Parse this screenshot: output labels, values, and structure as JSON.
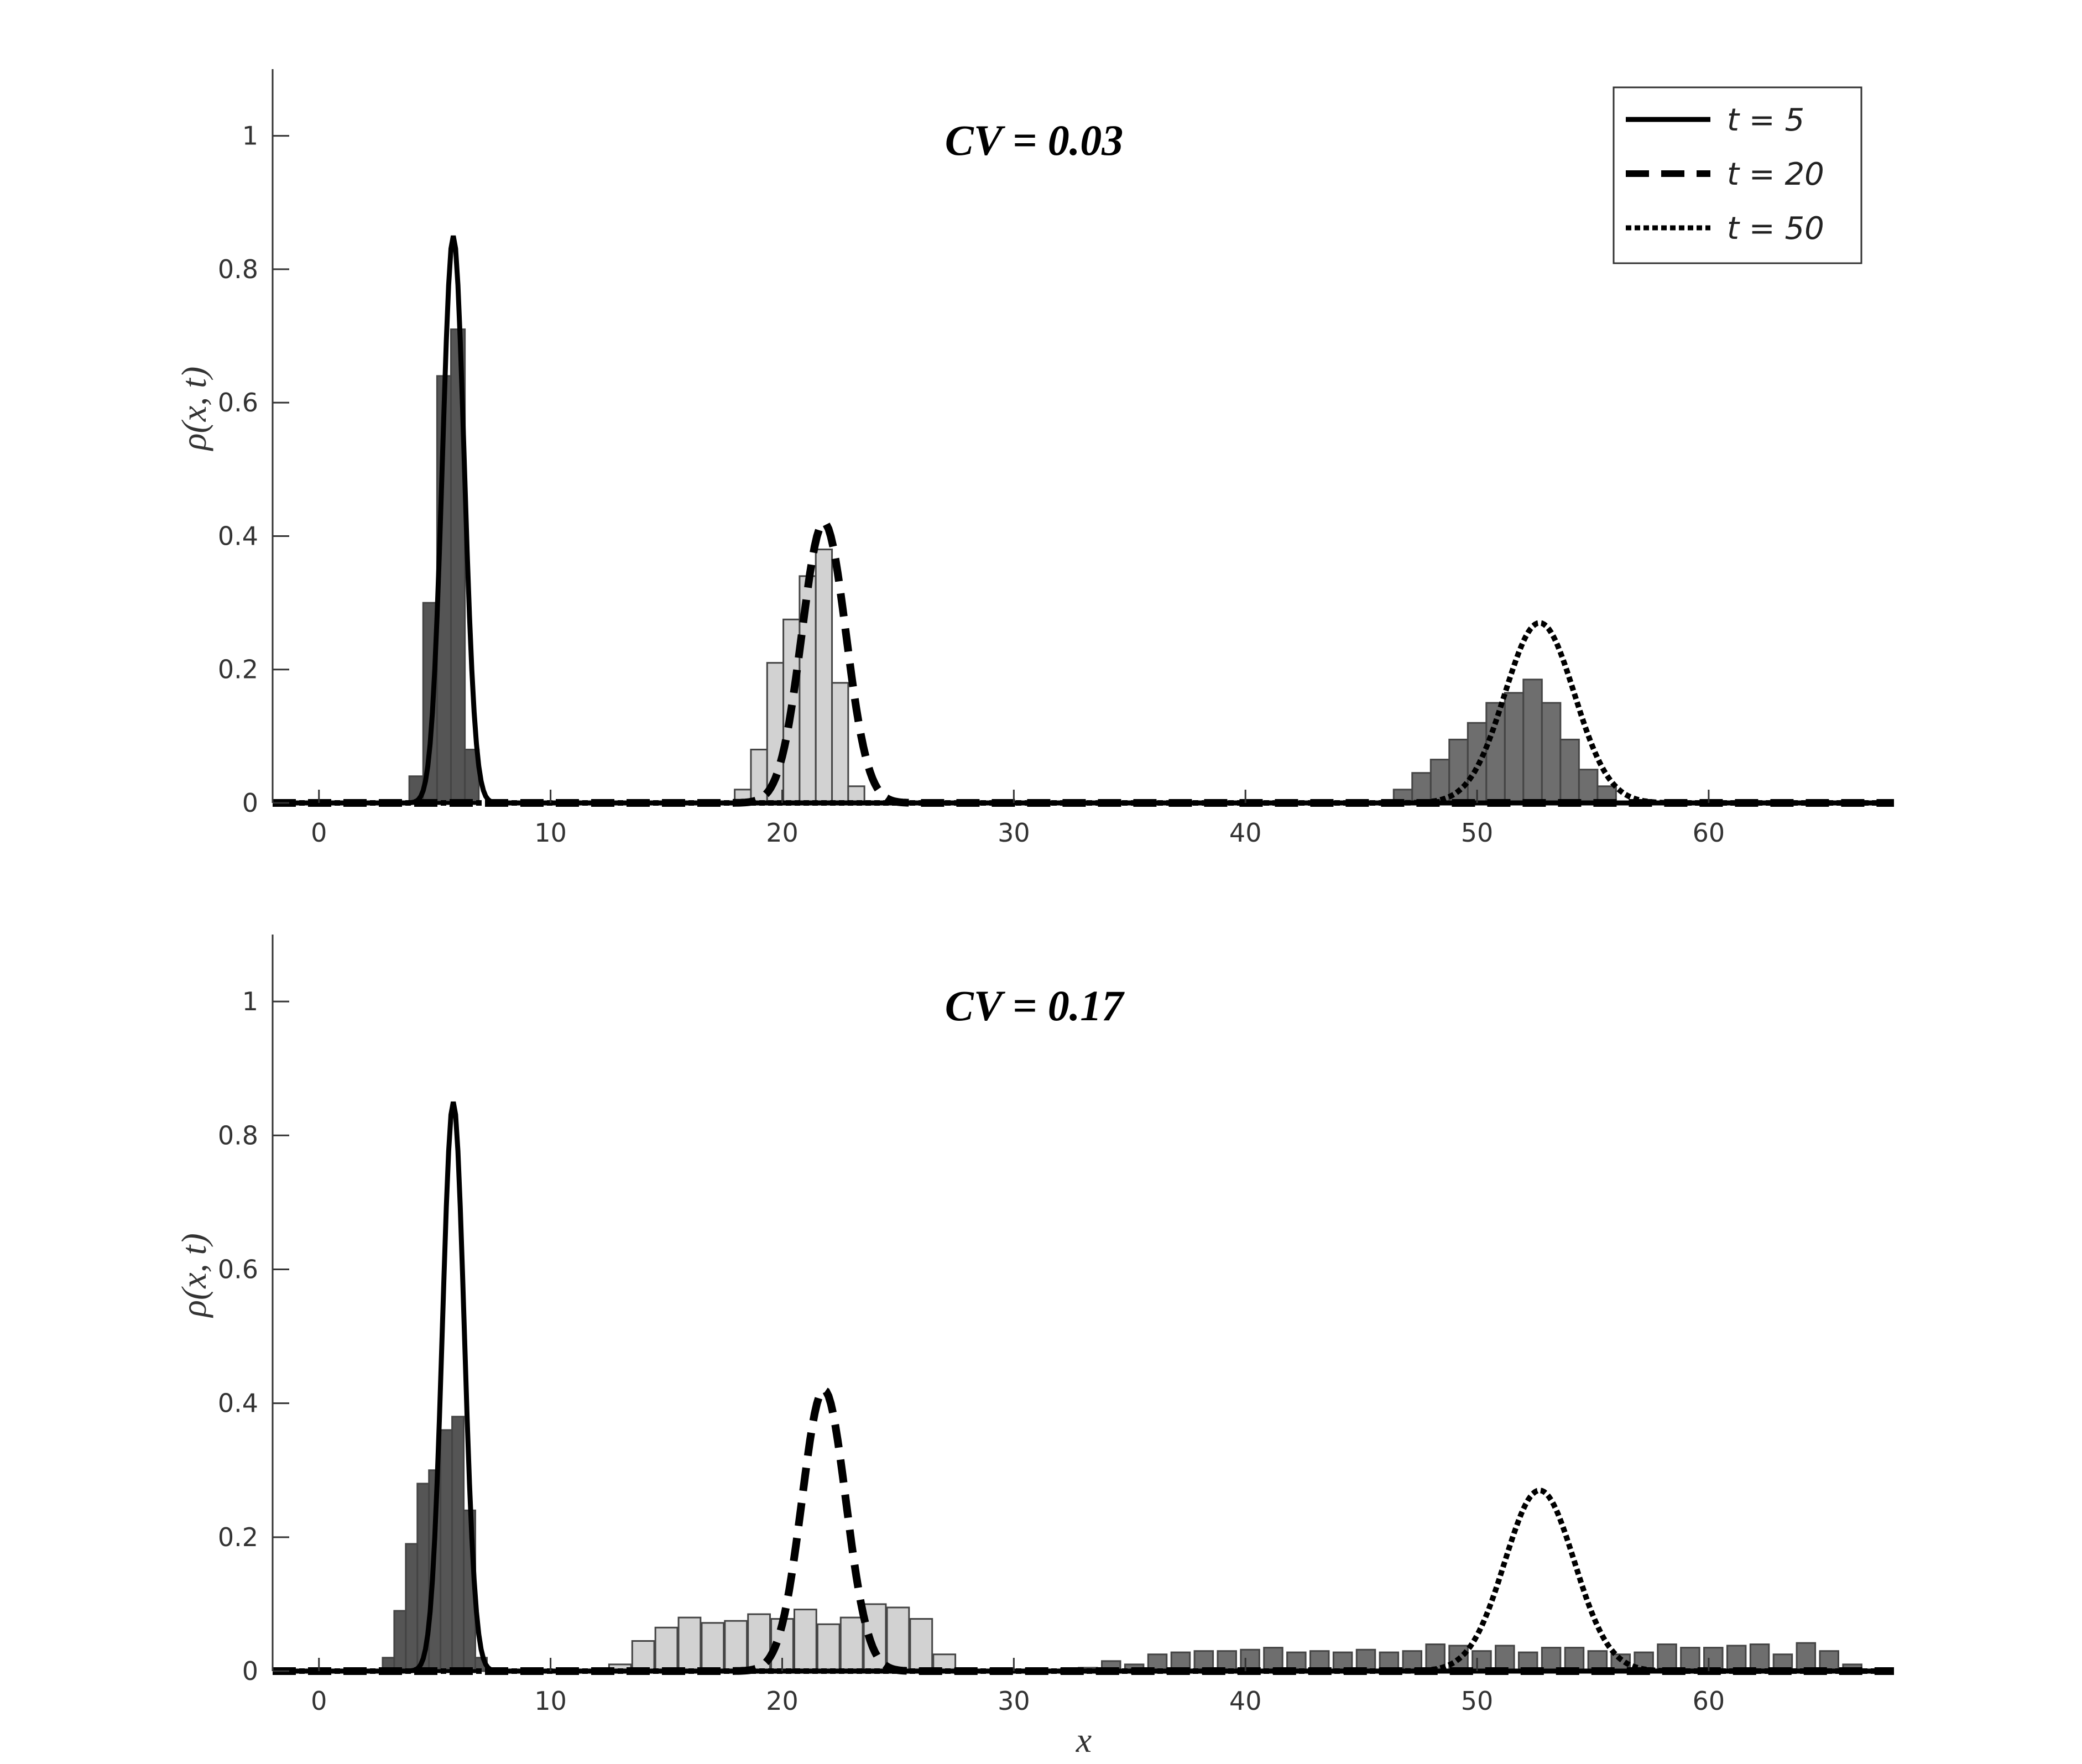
{
  "chart_data": [
    {
      "type": "bar",
      "title": "CV = 0.03",
      "xlabel": "",
      "ylabel": "ρ(x, t)",
      "xlim": [
        -2,
        68
      ],
      "ylim": [
        0,
        1.1
      ],
      "xticks": [
        "0",
        "10",
        "20",
        "30",
        "40",
        "50",
        "60"
      ],
      "yticks": [
        "0",
        "0.2",
        "0.4",
        "0.6",
        "0.8",
        "1"
      ],
      "grid": false,
      "histograms": [
        {
          "time": "t = 5",
          "color": "#555555",
          "bin_width": 0.6,
          "x": [
            4.2,
            4.8,
            5.4,
            6.0,
            6.6
          ],
          "values": [
            0.04,
            0.3,
            0.64,
            0.71,
            0.08
          ]
        },
        {
          "time": "t = 20",
          "color": "#d2d2d2",
          "bin_width": 0.7,
          "x": [
            18.3,
            19.0,
            19.7,
            20.4,
            21.1,
            21.8,
            22.5,
            23.2
          ],
          "values": [
            0.02,
            0.08,
            0.21,
            0.275,
            0.34,
            0.38,
            0.18,
            0.025
          ]
        },
        {
          "time": "t = 50",
          "color": "#6e6e6e",
          "bin_width": 0.8,
          "x": [
            46.8,
            47.6,
            48.4,
            49.2,
            50.0,
            50.8,
            51.6,
            52.4,
            53.2,
            54.0,
            54.8,
            55.6
          ],
          "values": [
            0.02,
            0.045,
            0.065,
            0.095,
            0.12,
            0.15,
            0.165,
            0.185,
            0.15,
            0.095,
            0.05,
            0.025
          ]
        }
      ],
      "curves": [
        {
          "name": "t = 5",
          "style": "solid",
          "peak_x": 5.8,
          "peak_y": 0.85,
          "sigma": 0.47
        },
        {
          "name": "t = 20",
          "style": "dashed",
          "peak_x": 21.8,
          "peak_y": 0.42,
          "sigma": 0.95
        },
        {
          "name": "t = 50",
          "style": "dotted",
          "peak_x": 52.7,
          "peak_y": 0.27,
          "sigma": 1.5
        }
      ],
      "legend": {
        "location": "top-right",
        "entries": [
          {
            "label": "t = 5",
            "style": "solid"
          },
          {
            "label": "t = 20",
            "style": "dashed"
          },
          {
            "label": "t = 50",
            "style": "dotted"
          }
        ]
      }
    },
    {
      "type": "bar",
      "title": "CV = 0.17",
      "xlabel": "x",
      "ylabel": "ρ(x, t)",
      "xlim": [
        -2,
        68
      ],
      "ylim": [
        0,
        1.1
      ],
      "xticks": [
        "0",
        "10",
        "20",
        "30",
        "40",
        "50",
        "60"
      ],
      "yticks": [
        "0",
        "0.2",
        "0.4",
        "0.6",
        "0.8",
        "1"
      ],
      "grid": false,
      "histograms": [
        {
          "time": "t = 5",
          "color": "#555555",
          "bin_width": 0.5,
          "x": [
            3.0,
            3.5,
            4.0,
            4.5,
            5.0,
            5.5,
            6.0,
            6.5,
            7.0
          ],
          "values": [
            0.02,
            0.09,
            0.19,
            0.28,
            0.3,
            0.36,
            0.38,
            0.24,
            0.02
          ]
        },
        {
          "time": "t = 20",
          "color": "#d2d2d2",
          "bin_width": 0.95,
          "x": [
            13.0,
            14.0,
            15.0,
            16.0,
            17.0,
            18.0,
            19.0,
            20.0,
            21.0,
            22.0,
            23.0,
            24.0,
            25.0,
            26.0,
            27.0
          ],
          "values": [
            0.01,
            0.045,
            0.065,
            0.08,
            0.072,
            0.075,
            0.085,
            0.078,
            0.092,
            0.07,
            0.08,
            0.1,
            0.095,
            0.078,
            0.025
          ]
        },
        {
          "time": "t = 50",
          "color": "#6e6e6e",
          "bin_width": 0.8,
          "x": [
            33.2,
            34.2,
            35.2,
            36.2,
            37.2,
            38.2,
            39.2,
            40.2,
            41.2,
            42.2,
            43.2,
            44.2,
            45.2,
            46.2,
            47.2,
            48.2,
            49.2,
            50.2,
            51.2,
            52.2,
            53.2,
            54.2,
            55.2,
            56.2,
            57.2,
            58.2,
            59.2,
            60.2,
            61.2,
            62.2,
            63.2,
            64.2,
            65.2,
            66.2
          ],
          "values": [
            0.005,
            0.015,
            0.01,
            0.025,
            0.028,
            0.03,
            0.03,
            0.032,
            0.035,
            0.028,
            0.03,
            0.028,
            0.032,
            0.028,
            0.03,
            0.04,
            0.038,
            0.03,
            0.038,
            0.028,
            0.035,
            0.035,
            0.03,
            0.025,
            0.028,
            0.04,
            0.035,
            0.035,
            0.038,
            0.04,
            0.025,
            0.042,
            0.03,
            0.01
          ]
        }
      ],
      "curves": [
        {
          "name": "t = 5",
          "style": "solid",
          "peak_x": 5.8,
          "peak_y": 0.85,
          "sigma": 0.47
        },
        {
          "name": "t = 20",
          "style": "dashed",
          "peak_x": 21.8,
          "peak_y": 0.42,
          "sigma": 0.95
        },
        {
          "name": "t = 50",
          "style": "dotted",
          "peak_x": 52.7,
          "peak_y": 0.27,
          "sigma": 1.5
        }
      ]
    }
  ]
}
